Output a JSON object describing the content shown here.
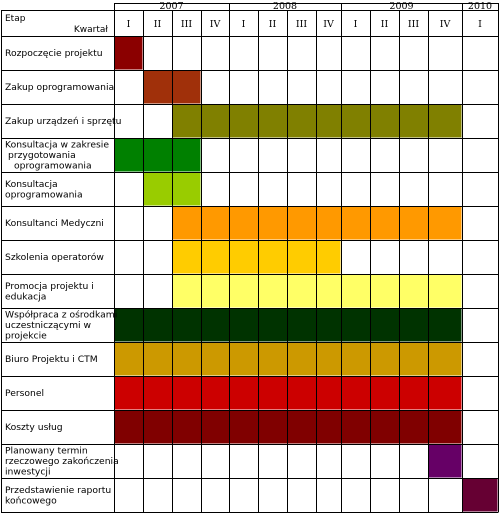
{
  "header": {
    "etap_label": "Etap",
    "kwartal_label": "Kwartał",
    "years": [
      "2007",
      "2008",
      "2009",
      "2010"
    ],
    "quarter_labels": [
      "I",
      "II",
      "III",
      "IV",
      "I",
      "II",
      "III",
      "IV",
      "I",
      "II",
      "III",
      "IV",
      "I"
    ]
  },
  "rows": [
    {
      "label": [
        "Rozpoczęcie projektu"
      ],
      "start_quarter": 1,
      "end_quarter": 1,
      "color": "#8B0000"
    },
    {
      "label": [
        "Zakup oprogramowania"
      ],
      "start_quarter": 2,
      "end_quarter": 3,
      "color": "#A0300A"
    },
    {
      "label": [
        "Zakup urządzeń i sprzętu"
      ],
      "start_quarter": 3,
      "end_quarter": 12,
      "color": "#808000"
    },
    {
      "label": [
        "Konsultacja w zakresie",
        "przygotowania",
        "oprogramowania"
      ],
      "start_quarter": 1,
      "end_quarter": 3,
      "color": "#008000"
    },
    {
      "label": [
        "Konsultacja",
        "oprogramowania"
      ],
      "start_quarter": 2,
      "end_quarter": 3,
      "color": "#99CC00"
    },
    {
      "label": [
        "Konsultanci Medyczni"
      ],
      "start_quarter": 3,
      "end_quarter": 12,
      "color": "#FF9900"
    },
    {
      "label": [
        "Szkolenia operatorów"
      ],
      "start_quarter": 3,
      "end_quarter": 8,
      "color": "#FFCC00"
    },
    {
      "label": [
        "Promocja projektu i",
        "edukacja"
      ],
      "start_quarter": 3,
      "end_quarter": 12,
      "color": "#FFFF66"
    },
    {
      "label": [
        "Współpraca z ośrodkami",
        "uczestniczącymi w",
        "projekcie"
      ],
      "start_quarter": 1,
      "end_quarter": 12,
      "color": "#003300"
    },
    {
      "label": [
        "Biuro Projektu i CTM"
      ],
      "start_quarter": 1,
      "end_quarter": 12,
      "color": "#CC9900"
    },
    {
      "label": [
        "Personel"
      ],
      "start_quarter": 1,
      "end_quarter": 12,
      "color": "#CC0000"
    },
    {
      "label": [
        "Koszty usług"
      ],
      "start_quarter": 1,
      "end_quarter": 12,
      "color": "#800000"
    },
    {
      "label": [
        "Planowany termin",
        "rzeczowego zakończenia",
        "inwestycji"
      ],
      "start_quarter": 12,
      "end_quarter": 12,
      "color": "#660066"
    },
    {
      "label": [
        "Przedstawienie raportu",
        "końcowego"
      ],
      "start_quarter": 13,
      "end_quarter": 13,
      "color": "#660033"
    }
  ]
}
